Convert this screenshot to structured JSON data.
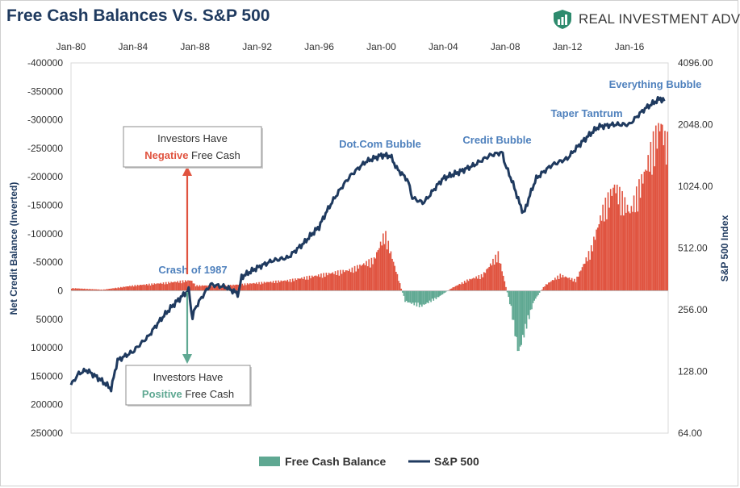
{
  "title": "Free Cash Balances Vs. S&P 500",
  "brand": {
    "name": "REAL INVESTMENT ADVICE",
    "logo_icon": "shield-bars-icon",
    "color": "#2e8b6e"
  },
  "colors": {
    "positive_bar": "#e0533f",
    "negative_bar": "#5fa892",
    "sp500_line": "#1f3a5f",
    "annotation_text": "#4f81bd",
    "left_arrow": "#e0533f",
    "right_arrow": "#5fa892"
  },
  "chart_data": {
    "type": "bar+line",
    "x_tick_labels": [
      "Jan-80",
      "Jan-84",
      "Jan-88",
      "Jan-92",
      "Jan-96",
      "Jan-00",
      "Jan-04",
      "Jan-08",
      "Jan-12",
      "Jan-16"
    ],
    "y_left": {
      "label": "Net Credit Balance (Inverted)",
      "inverted": true,
      "ticks": [
        "-400000",
        "-350000",
        "-300000",
        "-250000",
        "-200000",
        "-150000",
        "-100000",
        "-50000",
        "0",
        "50000",
        "100000",
        "150000",
        "200000",
        "250000"
      ],
      "range": [
        250000,
        -400000
      ]
    },
    "y_right": {
      "label": "S&P 500 Index",
      "scale": "log2",
      "ticks": [
        "4096.00",
        "2048.00",
        "1024.00",
        "512.00",
        "256.00",
        "128.00",
        "64.00"
      ],
      "range": [
        64,
        4096
      ]
    },
    "x_range": [
      1980.0,
      2018.5
    ],
    "series": [
      {
        "name": "Free Cash Balance",
        "type": "bar",
        "x": [
          1980,
          1982,
          1984,
          1986,
          1987.7,
          1988,
          1990,
          1992,
          1994,
          1996,
          1998,
          1999.5,
          2000.2,
          2000.8,
          2001.5,
          2002.5,
          2003.5,
          2004.5,
          2005.5,
          2006.5,
          2007.5,
          2008.3,
          2008.8,
          2009.2,
          2009.8,
          2010.5,
          2011.5,
          2012.5,
          2013.5,
          2014.2,
          2015,
          2016,
          2017,
          2017.5,
          2018,
          2018.3
        ],
        "values": [
          -5000,
          -2000,
          -10000,
          -15000,
          -20000,
          -10000,
          -10000,
          -15000,
          -20000,
          -30000,
          -40000,
          -60000,
          -110000,
          -50000,
          20000,
          30000,
          15000,
          -5000,
          -20000,
          -30000,
          -70000,
          30000,
          120000,
          80000,
          20000,
          -10000,
          -30000,
          -20000,
          -80000,
          -150000,
          -200000,
          -150000,
          -230000,
          -280000,
          -320000,
          -280000
        ]
      },
      {
        "name": "S&P 500",
        "type": "line",
        "x": [
          1980,
          1980.5,
          1981,
          1982,
          1982.6,
          1983,
          1984,
          1985,
          1986,
          1987,
          1987.6,
          1987.8,
          1988,
          1989,
          1990,
          1990.8,
          1991,
          1992,
          1993,
          1994,
          1995,
          1996,
          1997,
          1998,
          1999,
          2000,
          2000.6,
          2001,
          2001.7,
          2002,
          2002.7,
          2003,
          2004,
          2005,
          2006,
          2007,
          2007.8,
          2008,
          2008.9,
          2009.2,
          2010,
          2011,
          2012,
          2013,
          2014,
          2015,
          2016,
          2017,
          2018,
          2018.3
        ],
        "values": [
          110,
          125,
          130,
          115,
          105,
          145,
          160,
          190,
          240,
          290,
          320,
          230,
          260,
          340,
          330,
          305,
          370,
          410,
          445,
          460,
          540,
          650,
          900,
          1150,
          1350,
          1450,
          1440,
          1250,
          1100,
          900,
          850,
          900,
          1120,
          1200,
          1300,
          1450,
          1500,
          1300,
          850,
          750,
          1120,
          1300,
          1400,
          1700,
          2000,
          2050,
          2050,
          2450,
          2750,
          2650
        ]
      }
    ],
    "annotations": [
      "Crash of 1987",
      "Dot.Com Bubble",
      "Credit Bubble",
      "Taper Tantrum",
      "Everything Bubble"
    ],
    "callouts": [
      {
        "line1": "Investors Have",
        "word": "Negative",
        "rest": " Free Cash"
      },
      {
        "line1": "Investors Have",
        "word": "Positive",
        "rest": " Free Cash"
      }
    ],
    "legend": [
      "Free Cash Balance",
      "S&P 500"
    ],
    "legend_position": "bottom"
  }
}
